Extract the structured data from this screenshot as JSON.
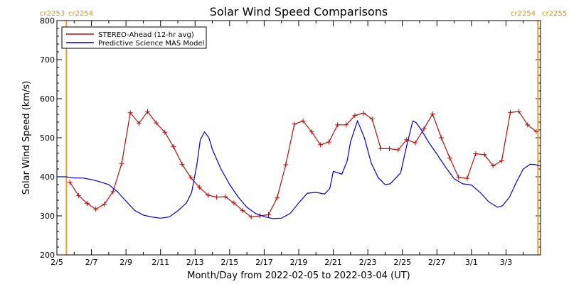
{
  "chart_data": {
    "type": "line",
    "title": "Solar Wind Speed Comparisons",
    "xlabel": "Month/Day from 2022-02-05 to 2022-03-04 (UT)",
    "ylabel": "Solar Wind Speed (km/s)",
    "xlim": [
      0,
      28
    ],
    "ylim": [
      200,
      800
    ],
    "x_ticks": [
      {
        "x": 0,
        "label": "2/5"
      },
      {
        "x": 2,
        "label": "2/7"
      },
      {
        "x": 4,
        "label": "2/9"
      },
      {
        "x": 6,
        "label": "2/11"
      },
      {
        "x": 8,
        "label": "2/13"
      },
      {
        "x": 10,
        "label": "2/15"
      },
      {
        "x": 12,
        "label": "2/17"
      },
      {
        "x": 14,
        "label": "2/19"
      },
      {
        "x": 16,
        "label": "2/21"
      },
      {
        "x": 18,
        "label": "2/23"
      },
      {
        "x": 20,
        "label": "2/25"
      },
      {
        "x": 22,
        "label": "2/27"
      },
      {
        "x": 24,
        "label": "3/1"
      },
      {
        "x": 26,
        "label": "3/3"
      }
    ],
    "y_ticks": [
      200,
      300,
      400,
      500,
      600,
      700,
      800
    ],
    "legend_position": "top-left",
    "carrington_markers": [
      {
        "x": 0.55,
        "left_label": "cr2253",
        "right_label": "cr2254",
        "label_side": "left"
      },
      {
        "x": 27.85,
        "left_label": "cr2254",
        "right_label": "cr2255",
        "label_side": "right"
      }
    ],
    "series": [
      {
        "name": "STEREO-Ahead (12-hr avg)",
        "color": "#b01010",
        "marker": "plus",
        "points": [
          [
            0.75,
            386
          ],
          [
            1.25,
            352
          ],
          [
            1.75,
            332
          ],
          [
            2.25,
            317
          ],
          [
            2.75,
            330
          ],
          [
            3.25,
            362
          ],
          [
            3.75,
            434
          ],
          [
            4.25,
            564
          ],
          [
            4.75,
            537
          ],
          [
            5.25,
            567
          ],
          [
            5.75,
            538
          ],
          [
            6.25,
            514
          ],
          [
            6.75,
            477
          ],
          [
            7.25,
            432
          ],
          [
            7.75,
            398
          ],
          [
            8.25,
            373
          ],
          [
            8.75,
            353
          ],
          [
            9.25,
            348
          ],
          [
            9.75,
            349
          ],
          [
            10.25,
            333
          ],
          [
            10.75,
            314
          ],
          [
            11.25,
            297
          ],
          [
            11.75,
            300
          ],
          [
            12.25,
            303
          ],
          [
            12.75,
            346
          ],
          [
            13.25,
            431
          ],
          [
            13.75,
            535
          ],
          [
            14.25,
            543
          ],
          [
            14.75,
            515
          ],
          [
            15.25,
            482
          ],
          [
            15.75,
            489
          ],
          [
            16.25,
            533
          ],
          [
            16.75,
            533
          ],
          [
            17.25,
            557
          ],
          [
            17.75,
            563
          ],
          [
            18.25,
            548
          ],
          [
            18.75,
            472
          ],
          [
            19.25,
            472
          ],
          [
            19.75,
            469
          ],
          [
            20.25,
            495
          ],
          [
            20.75,
            487
          ],
          [
            21.25,
            523
          ],
          [
            21.75,
            561
          ],
          [
            22.25,
            500
          ],
          [
            22.75,
            448
          ],
          [
            23.25,
            399
          ],
          [
            23.75,
            396
          ],
          [
            24.25,
            459
          ],
          [
            24.75,
            457
          ],
          [
            25.25,
            428
          ],
          [
            25.75,
            441
          ],
          [
            26.25,
            565
          ],
          [
            26.75,
            567
          ],
          [
            27.25,
            533
          ],
          [
            27.75,
            516
          ]
        ]
      },
      {
        "name": "Predictive Science MAS Model",
        "color": "#0000cc",
        "marker": "none",
        "points": [
          [
            0.0,
            400
          ],
          [
            0.5,
            400
          ],
          [
            1.0,
            397
          ],
          [
            1.5,
            397
          ],
          [
            2.0,
            393
          ],
          [
            2.5,
            387
          ],
          [
            3.0,
            380
          ],
          [
            3.5,
            362
          ],
          [
            4.0,
            338
          ],
          [
            4.5,
            314
          ],
          [
            5.0,
            302
          ],
          [
            5.5,
            297
          ],
          [
            6.0,
            294
          ],
          [
            6.5,
            297
          ],
          [
            7.0,
            313
          ],
          [
            7.5,
            333
          ],
          [
            7.8,
            360
          ],
          [
            8.1,
            430
          ],
          [
            8.3,
            495
          ],
          [
            8.55,
            515
          ],
          [
            8.8,
            500
          ],
          [
            9.0,
            470
          ],
          [
            9.5,
            420
          ],
          [
            10.0,
            380
          ],
          [
            10.5,
            348
          ],
          [
            11.0,
            322
          ],
          [
            11.5,
            306
          ],
          [
            12.0,
            298
          ],
          [
            12.5,
            293
          ],
          [
            13.0,
            294
          ],
          [
            13.5,
            306
          ],
          [
            14.0,
            333
          ],
          [
            14.5,
            358
          ],
          [
            15.0,
            360
          ],
          [
            15.5,
            356
          ],
          [
            15.8,
            370
          ],
          [
            16.0,
            414
          ],
          [
            16.5,
            407
          ],
          [
            16.8,
            440
          ],
          [
            17.0,
            490
          ],
          [
            17.4,
            543
          ],
          [
            17.8,
            500
          ],
          [
            18.2,
            435
          ],
          [
            18.6,
            398
          ],
          [
            19.0,
            380
          ],
          [
            19.3,
            382
          ],
          [
            19.6,
            396
          ],
          [
            19.9,
            410
          ],
          [
            20.2,
            470
          ],
          [
            20.6,
            543
          ],
          [
            20.8,
            539
          ],
          [
            21.1,
            520
          ],
          [
            21.5,
            490
          ],
          [
            22.0,
            458
          ],
          [
            22.5,
            425
          ],
          [
            23.0,
            395
          ],
          [
            23.5,
            382
          ],
          [
            24.0,
            379
          ],
          [
            24.5,
            360
          ],
          [
            25.0,
            336
          ],
          [
            25.5,
            322
          ],
          [
            25.8,
            326
          ],
          [
            26.2,
            348
          ],
          [
            26.6,
            386
          ],
          [
            27.0,
            420
          ],
          [
            27.4,
            432
          ],
          [
            27.7,
            431
          ],
          [
            28.0,
            427
          ]
        ]
      }
    ]
  }
}
